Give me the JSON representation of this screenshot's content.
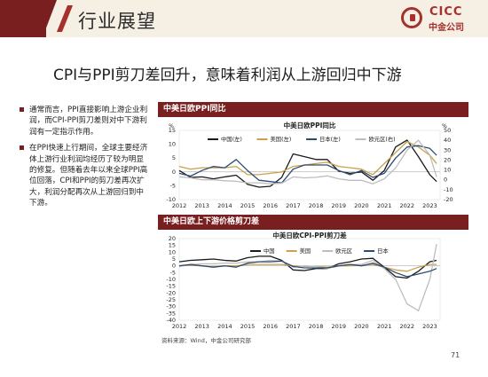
{
  "header": {
    "title": "行业展望"
  },
  "logo": {
    "en": "CICC",
    "cn": "中金公司"
  },
  "headline": "CPI与PPI剪刀差回升，意味着利润从上游回归中下游",
  "bullets": [
    {
      "text": "通常而言，PPI直接影响上游企业利润，而CPI-PPI剪刀差则对中下游利润有一定指示作用。"
    },
    {
      "text": "在PPI快速上行期间，全球主要经济体上游行业利润均经历了较为明显的修复。但随着去年以来全球PPI高位回落，CPI和PPI的剪刀差再次扩大，利润分配再次从上游回归到中下游。"
    }
  ],
  "panels": [
    {
      "bar_title": "中美日欧PPI同比"
    },
    {
      "bar_title": "中美日欧上下游价格剪刀差"
    }
  ],
  "source": "资料来源：Wind，中金公司研究部",
  "page_number": "71",
  "colors": {
    "china": "#1a1a1a",
    "us": "#c9a24a",
    "japan": "#2d4a73",
    "eurozone": "#bdbdbd",
    "brand": "#7a1f1f"
  },
  "chart_data": [
    {
      "type": "line",
      "title": "中美日欧PPI同比",
      "left_unit": "%",
      "right_unit": "%",
      "ylim_left": [
        -10,
        15
      ],
      "yticks_left": [
        -10,
        -5,
        0,
        5,
        10,
        15
      ],
      "ylim_right": [
        -20,
        50
      ],
      "yticks_right": [
        -20,
        -10,
        0,
        10,
        20,
        30,
        40,
        50
      ],
      "x_years": [
        "2012",
        "2013",
        "2014",
        "2015",
        "2016",
        "2017",
        "2018",
        "2019",
        "2020",
        "2021",
        "2022",
        "2023"
      ],
      "x": [
        2012.0,
        2012.5,
        2013.0,
        2013.5,
        2014.0,
        2014.5,
        2015.0,
        2015.5,
        2016.0,
        2016.5,
        2017.0,
        2017.5,
        2018.0,
        2018.5,
        2019.0,
        2019.5,
        2020.0,
        2020.5,
        2021.0,
        2021.5,
        2022.0,
        2022.5,
        2023.0,
        2023.3
      ],
      "series": [
        {
          "name": "中国(左)",
          "axis": "left",
          "color": "#1a1a1a",
          "values": [
            0.5,
            -2,
            -1.8,
            -2.5,
            -1.8,
            -1.2,
            -4.5,
            -5.5,
            -5.2,
            -2,
            6.5,
            5.5,
            4.5,
            4.5,
            0.3,
            -0.5,
            0,
            -3,
            0.5,
            9,
            11.5,
            5.5,
            -1,
            -3.5
          ]
        },
        {
          "name": "美国(左)",
          "axis": "left",
          "color": "#c9a24a",
          "values": [
            2,
            1,
            1.5,
            1.5,
            1.5,
            2,
            -1,
            -1,
            -0.5,
            0,
            2,
            2.5,
            3,
            3.5,
            2,
            1.5,
            1,
            -1,
            3,
            7,
            11,
            9,
            6,
            3
          ]
        },
        {
          "name": "日本(左)",
          "axis": "left",
          "color": "#2d4a73",
          "values": [
            -0.5,
            -1.5,
            0.5,
            2,
            1.5,
            4.5,
            0.5,
            -3,
            -3.5,
            -4,
            1,
            2.5,
            2.5,
            2.5,
            0.5,
            -1,
            0.5,
            -2,
            -0.5,
            5,
            9,
            9.5,
            8.5,
            6
          ]
        },
        {
          "name": "欧元区(右)",
          "axis": "right",
          "color": "#bdbdbd",
          "values": [
            3,
            2,
            0,
            0,
            -1,
            -1.5,
            -3,
            -3,
            -4,
            -3.5,
            3,
            2,
            2.5,
            4,
            1,
            -0.5,
            -0.5,
            -4,
            1,
            12,
            30,
            40,
            25,
            3
          ]
        }
      ]
    },
    {
      "type": "line",
      "title": "中美日欧CPI-PPI剪刀差",
      "ylim": [
        -40,
        20
      ],
      "yticks": [
        -40,
        -35,
        -30,
        -25,
        -20,
        -15,
        -10,
        -5,
        0,
        5,
        10,
        15,
        20
      ],
      "x_years": [
        "2012",
        "2013",
        "2014",
        "2015",
        "2016",
        "2017",
        "2018",
        "2019",
        "2020",
        "2021",
        "2022",
        "2023"
      ],
      "x": [
        2012.0,
        2012.5,
        2013.0,
        2013.5,
        2014.0,
        2014.5,
        2015.0,
        2015.5,
        2016.0,
        2016.5,
        2017.0,
        2017.5,
        2018.0,
        2018.5,
        2019.0,
        2019.5,
        2020.0,
        2020.5,
        2021.0,
        2021.5,
        2022.0,
        2022.5,
        2023.0,
        2023.3
      ],
      "series": [
        {
          "name": "中国",
          "color": "#1a1a1a",
          "values": [
            3,
            4,
            4.5,
            5,
            4,
            3.5,
            6,
            7,
            7,
            4,
            -3,
            -3.5,
            -2,
            -2,
            1.5,
            3,
            5,
            5.5,
            -1,
            -8,
            -9,
            -4,
            3,
            4
          ]
        },
        {
          "name": "美国",
          "color": "#c9a24a",
          "values": [
            0,
            0.5,
            0,
            -0.5,
            0,
            0,
            1,
            1,
            1,
            1,
            0,
            -0.5,
            -0.5,
            -1,
            0,
            0,
            0.5,
            1,
            -1,
            -3,
            -4,
            -1,
            1,
            1
          ]
        },
        {
          "name": "欧元区",
          "color": "#bdbdbd",
          "values": [
            -0.5,
            1,
            1.5,
            1.5,
            2,
            2,
            3,
            3,
            4,
            3.5,
            -1,
            0,
            -0.5,
            -2,
            0,
            1,
            1,
            4,
            -2,
            -10,
            -28,
            -33,
            -10,
            16
          ]
        },
        {
          "name": "日本",
          "color": "#2d4a73",
          "values": [
            0,
            1,
            0,
            -1,
            0,
            -1,
            2,
            3,
            3,
            3.5,
            -0.5,
            -1.5,
            -1.5,
            -1.5,
            0,
            1,
            0,
            2,
            -1,
            -5,
            -8,
            -6,
            -4,
            -2
          ]
        }
      ]
    }
  ]
}
